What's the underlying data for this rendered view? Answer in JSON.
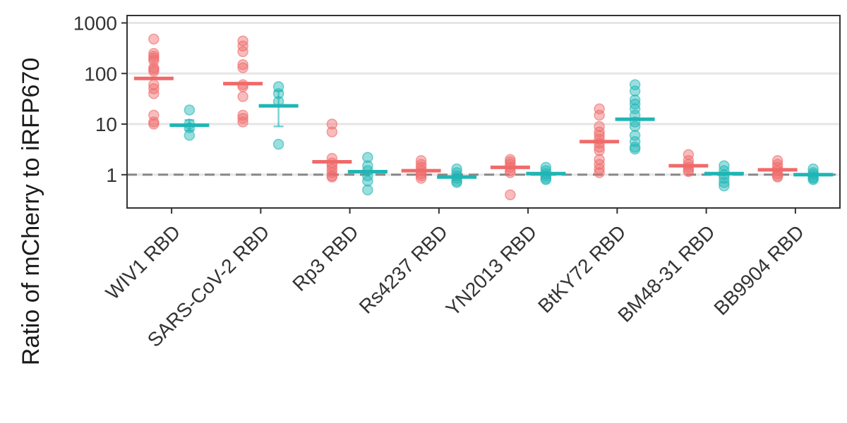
{
  "chart_data": {
    "type": "scatter",
    "title": "",
    "xlabel": "",
    "ylabel": "Ratio of mCherry to iRFP670",
    "y_scale": "log10",
    "ylim": [
      0.22,
      1400
    ],
    "y_ticks": [
      {
        "value": 1,
        "label": "1"
      },
      {
        "value": 10,
        "label": "10"
      },
      {
        "value": 100,
        "label": "100"
      },
      {
        "value": 1000,
        "label": "1000"
      }
    ],
    "reference_line": {
      "value": 1,
      "style": "dashed",
      "color": "#888888"
    },
    "grid": "horizontal major",
    "legend": "none",
    "categories": [
      "WIV1 RBD",
      "SARS-CoV-2 RBD",
      "Rp3 RBD",
      "Rs4237 RBD",
      "YN2013 RBD",
      "BtKY72 RBD",
      "BM48-31 RBD",
      "BB9904 RBD"
    ],
    "series": [
      {
        "color": "#F06A6A",
        "points": [
          [
            480,
            250,
            220,
            200,
            180,
            130,
            120,
            110,
            60,
            50,
            40,
            15,
            11,
            10
          ],
          [
            440,
            350,
            270,
            150,
            130,
            60,
            55,
            35,
            15,
            13,
            11
          ],
          [
            10,
            7,
            2.1,
            1.7,
            1.5,
            1.3,
            1.1,
            0.95,
            0.9
          ],
          [
            1.9,
            1.6,
            1.4,
            1.2,
            1.05,
            0.95,
            0.85
          ],
          [
            2.0,
            1.8,
            1.6,
            1.4,
            1.2,
            1.1,
            0.4
          ],
          [
            20,
            15,
            9,
            7,
            6,
            5,
            4.2,
            3.5,
            3.0,
            2.0,
            1.6,
            1.3,
            1.1
          ],
          [
            2.5,
            1.9,
            1.6,
            1.4,
            1.25,
            1.15
          ],
          [
            1.9,
            1.6,
            1.4,
            1.2,
            1.05,
            0.95,
            0.9
          ]
        ],
        "means": [
          80,
          63,
          1.8,
          1.2,
          1.4,
          4.5,
          1.5,
          1.25
        ],
        "error": [
          null,
          null,
          null,
          null,
          null,
          null,
          null,
          null
        ]
      },
      {
        "color": "#1FB5B5",
        "points": [
          [
            19,
            10,
            8.5,
            6
          ],
          [
            55,
            40,
            28,
            4.0
          ],
          [
            2.2,
            1.5,
            1.2,
            0.95,
            0.75,
            0.5
          ],
          [
            1.3,
            1.1,
            0.95,
            0.85,
            0.75,
            0.7
          ],
          [
            1.4,
            1.2,
            1.05,
            0.95,
            0.85,
            0.8
          ],
          [
            60,
            45,
            30,
            25,
            20,
            15,
            11,
            9,
            6,
            4.5,
            3.5,
            3.2
          ],
          [
            1.5,
            1.2,
            1.0,
            0.85,
            0.7,
            0.6
          ],
          [
            1.3,
            1.1,
            1.0,
            0.9,
            0.85,
            0.8
          ]
        ],
        "means": [
          9.5,
          23,
          1.15,
          0.9,
          1.05,
          12.5,
          1.05,
          1.0
        ],
        "error": [
          [
            7.5,
            12
          ],
          [
            9,
            45
          ],
          null,
          null,
          null,
          null,
          null,
          null
        ]
      }
    ]
  }
}
